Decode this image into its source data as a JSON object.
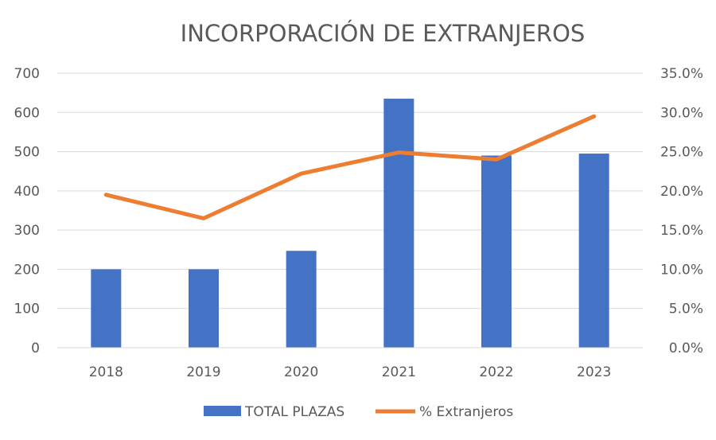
{
  "chart_data": {
    "type": "bar",
    "title": "INCORPORACIÓN DE EXTRANJEROS",
    "categories": [
      "2018",
      "2019",
      "2020",
      "2021",
      "2022",
      "2023"
    ],
    "series": [
      {
        "name": "TOTAL PLAZAS",
        "type": "bar",
        "axis": "left",
        "color": "#4472c4",
        "values": [
          200,
          200,
          247,
          635,
          490,
          495
        ]
      },
      {
        "name": "% Extranjeros",
        "type": "line",
        "axis": "right",
        "color": "#ed7d31",
        "values": [
          0.195,
          0.165,
          0.222,
          0.249,
          0.24,
          0.295
        ]
      }
    ],
    "y_left": {
      "ylim": [
        0,
        700
      ],
      "ticks": [
        0,
        100,
        200,
        300,
        400,
        500,
        600,
        700
      ],
      "tick_labels": [
        "0",
        "100",
        "200",
        "300",
        "400",
        "500",
        "600",
        "700"
      ]
    },
    "y_right": {
      "ylim": [
        0,
        0.35
      ],
      "ticks": [
        0,
        0.05,
        0.1,
        0.15,
        0.2,
        0.25,
        0.3,
        0.35
      ],
      "tick_labels": [
        "0.0%",
        "5.0%",
        "10.0%",
        "15.0%",
        "20.0%",
        "25.0%",
        "30.0%",
        "35.0%"
      ]
    },
    "grid": true,
    "legend": "bottom"
  }
}
